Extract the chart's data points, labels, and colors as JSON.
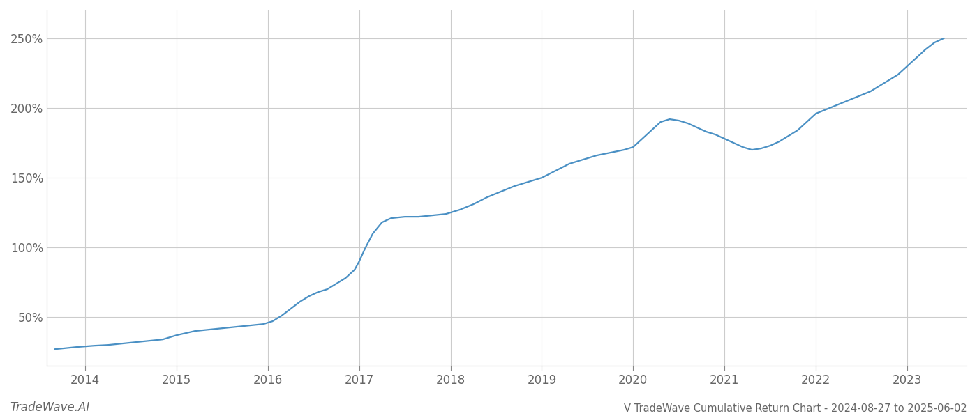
{
  "title": "V TradeWave Cumulative Return Chart - 2024-08-27 to 2025-06-02",
  "watermark": "TradeWave.AI",
  "line_color": "#4a90c4",
  "background_color": "#ffffff",
  "grid_color": "#cccccc",
  "x_years": [
    2014,
    2015,
    2016,
    2017,
    2018,
    2019,
    2020,
    2021,
    2022,
    2023
  ],
  "data_points": [
    [
      2013.67,
      27
    ],
    [
      2013.75,
      27.5
    ],
    [
      2013.9,
      28.5
    ],
    [
      2014.0,
      29
    ],
    [
      2014.1,
      29.5
    ],
    [
      2014.25,
      30
    ],
    [
      2014.4,
      31
    ],
    [
      2014.55,
      32
    ],
    [
      2014.7,
      33
    ],
    [
      2014.85,
      34
    ],
    [
      2015.0,
      37
    ],
    [
      2015.1,
      38.5
    ],
    [
      2015.2,
      40
    ],
    [
      2015.35,
      41
    ],
    [
      2015.5,
      42
    ],
    [
      2015.65,
      43
    ],
    [
      2015.8,
      44
    ],
    [
      2015.95,
      45
    ],
    [
      2016.05,
      47
    ],
    [
      2016.15,
      51
    ],
    [
      2016.25,
      56
    ],
    [
      2016.35,
      61
    ],
    [
      2016.45,
      65
    ],
    [
      2016.55,
      68
    ],
    [
      2016.65,
      70
    ],
    [
      2016.75,
      74
    ],
    [
      2016.85,
      78
    ],
    [
      2016.95,
      84
    ],
    [
      2017.0,
      90
    ],
    [
      2017.07,
      100
    ],
    [
      2017.15,
      110
    ],
    [
      2017.25,
      118
    ],
    [
      2017.35,
      121
    ],
    [
      2017.5,
      122
    ],
    [
      2017.65,
      122
    ],
    [
      2017.8,
      123
    ],
    [
      2017.95,
      124
    ],
    [
      2018.1,
      127
    ],
    [
      2018.25,
      131
    ],
    [
      2018.4,
      136
    ],
    [
      2018.55,
      140
    ],
    [
      2018.7,
      144
    ],
    [
      2018.85,
      147
    ],
    [
      2019.0,
      150
    ],
    [
      2019.15,
      155
    ],
    [
      2019.3,
      160
    ],
    [
      2019.45,
      163
    ],
    [
      2019.6,
      166
    ],
    [
      2019.75,
      168
    ],
    [
      2019.9,
      170
    ],
    [
      2020.0,
      172
    ],
    [
      2020.1,
      178
    ],
    [
      2020.2,
      184
    ],
    [
      2020.3,
      190
    ],
    [
      2020.4,
      192
    ],
    [
      2020.5,
      191
    ],
    [
      2020.6,
      189
    ],
    [
      2020.7,
      186
    ],
    [
      2020.8,
      183
    ],
    [
      2020.9,
      181
    ],
    [
      2021.0,
      178
    ],
    [
      2021.1,
      175
    ],
    [
      2021.2,
      172
    ],
    [
      2021.3,
      170
    ],
    [
      2021.4,
      171
    ],
    [
      2021.5,
      173
    ],
    [
      2021.6,
      176
    ],
    [
      2021.7,
      180
    ],
    [
      2021.8,
      184
    ],
    [
      2021.9,
      190
    ],
    [
      2022.0,
      196
    ],
    [
      2022.15,
      200
    ],
    [
      2022.3,
      204
    ],
    [
      2022.45,
      208
    ],
    [
      2022.6,
      212
    ],
    [
      2022.75,
      218
    ],
    [
      2022.9,
      224
    ],
    [
      2023.0,
      230
    ],
    [
      2023.1,
      236
    ],
    [
      2023.2,
      242
    ],
    [
      2023.3,
      247
    ],
    [
      2023.4,
      250
    ]
  ],
  "yticks": [
    50,
    100,
    150,
    200,
    250
  ],
  "ylim": [
    15,
    270
  ],
  "xlim": [
    2013.58,
    2023.65
  ],
  "title_fontsize": 10.5,
  "tick_fontsize": 12,
  "watermark_fontsize": 12,
  "line_width": 1.6,
  "spine_color": "#999999",
  "tick_color": "#888888",
  "label_color": "#888888",
  "label_color_dark": "#666666"
}
